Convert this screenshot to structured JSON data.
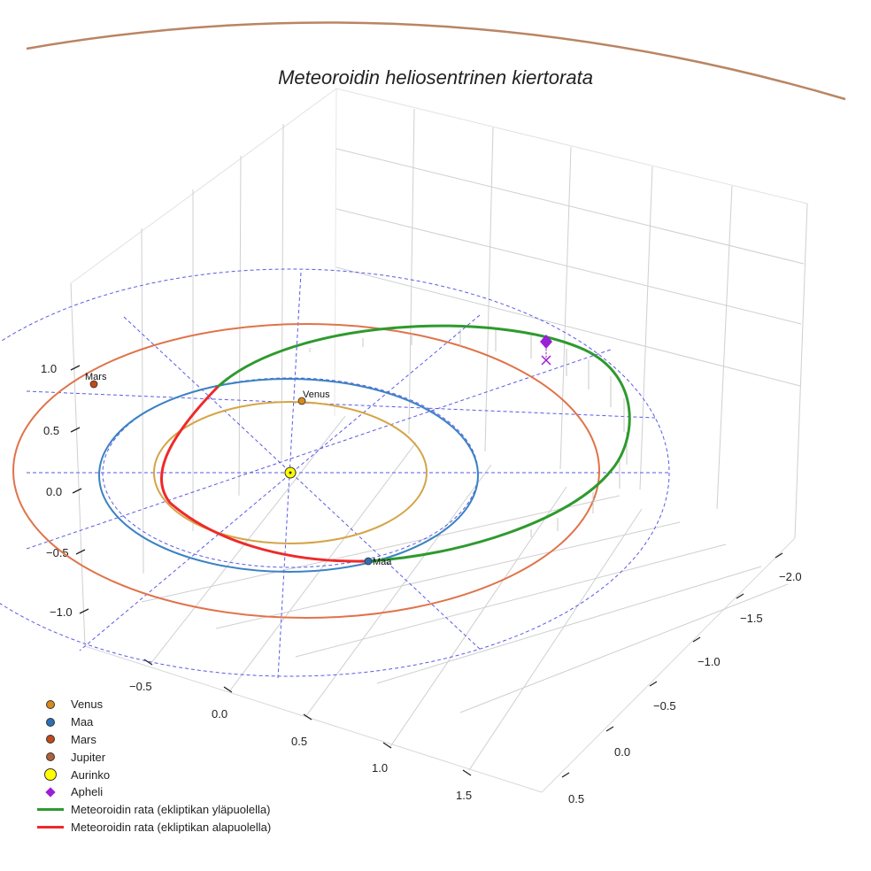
{
  "chart_data": {
    "type": "scatter3d",
    "title": "Meteoroidin heliosentrinen kiertorata",
    "x_ticks": [
      "−0.5",
      "0.0",
      "0.5",
      "1.0",
      "1.5"
    ],
    "y_ticks": [
      "−2.0",
      "−1.5",
      "−1.0",
      "−0.5",
      "0.0",
      "0.5"
    ],
    "z_ticks": [
      "1.0",
      "0.5",
      "0.0",
      "−0.5",
      "−1.0"
    ],
    "orbits": [
      {
        "name": "Venus",
        "a_au": 0.72,
        "color": "#d4a547"
      },
      {
        "name": "Maa",
        "a_au": 1.0,
        "color": "#3b82c4"
      },
      {
        "name": "Mars",
        "a_au": 1.52,
        "color": "#e0734a"
      },
      {
        "name": "Jupiter",
        "a_au": 5.2,
        "color": "#b98563"
      }
    ],
    "meteoroid": {
      "perihelion_au": 0.72,
      "aphelion_au": 2.05,
      "above_color": "#2e9a2e",
      "below_color": "#ee2a2a"
    },
    "points": [
      {
        "label": "Venus",
        "color": "#d88a1a"
      },
      {
        "label": "Maa",
        "color": "#2c6fb5"
      },
      {
        "label": "Mars",
        "color": "#c04a18"
      }
    ],
    "sun_color": "#ffff00",
    "aphelion_color": "#9b1fd6"
  },
  "legend": [
    {
      "label": "Venus",
      "kind": "dot",
      "color": "#d88a1a"
    },
    {
      "label": "Maa",
      "kind": "dot",
      "color": "#2c6fb5"
    },
    {
      "label": "Mars",
      "kind": "dot",
      "color": "#c04a18"
    },
    {
      "label": "Jupiter",
      "kind": "dot",
      "color": "#b0603a"
    },
    {
      "label": "Aurinko",
      "kind": "sun",
      "color": "#ffff00"
    },
    {
      "label": "Apheli",
      "kind": "diamond",
      "color": "#9b1fd6"
    },
    {
      "label": "Meteoroidin rata (ekliptikan yläpuolella)",
      "kind": "line",
      "color": "#2e9a2e"
    },
    {
      "label": "Meteoroidin rata (ekliptikan alapuolella)",
      "kind": "line",
      "color": "#ee2a2a"
    }
  ]
}
